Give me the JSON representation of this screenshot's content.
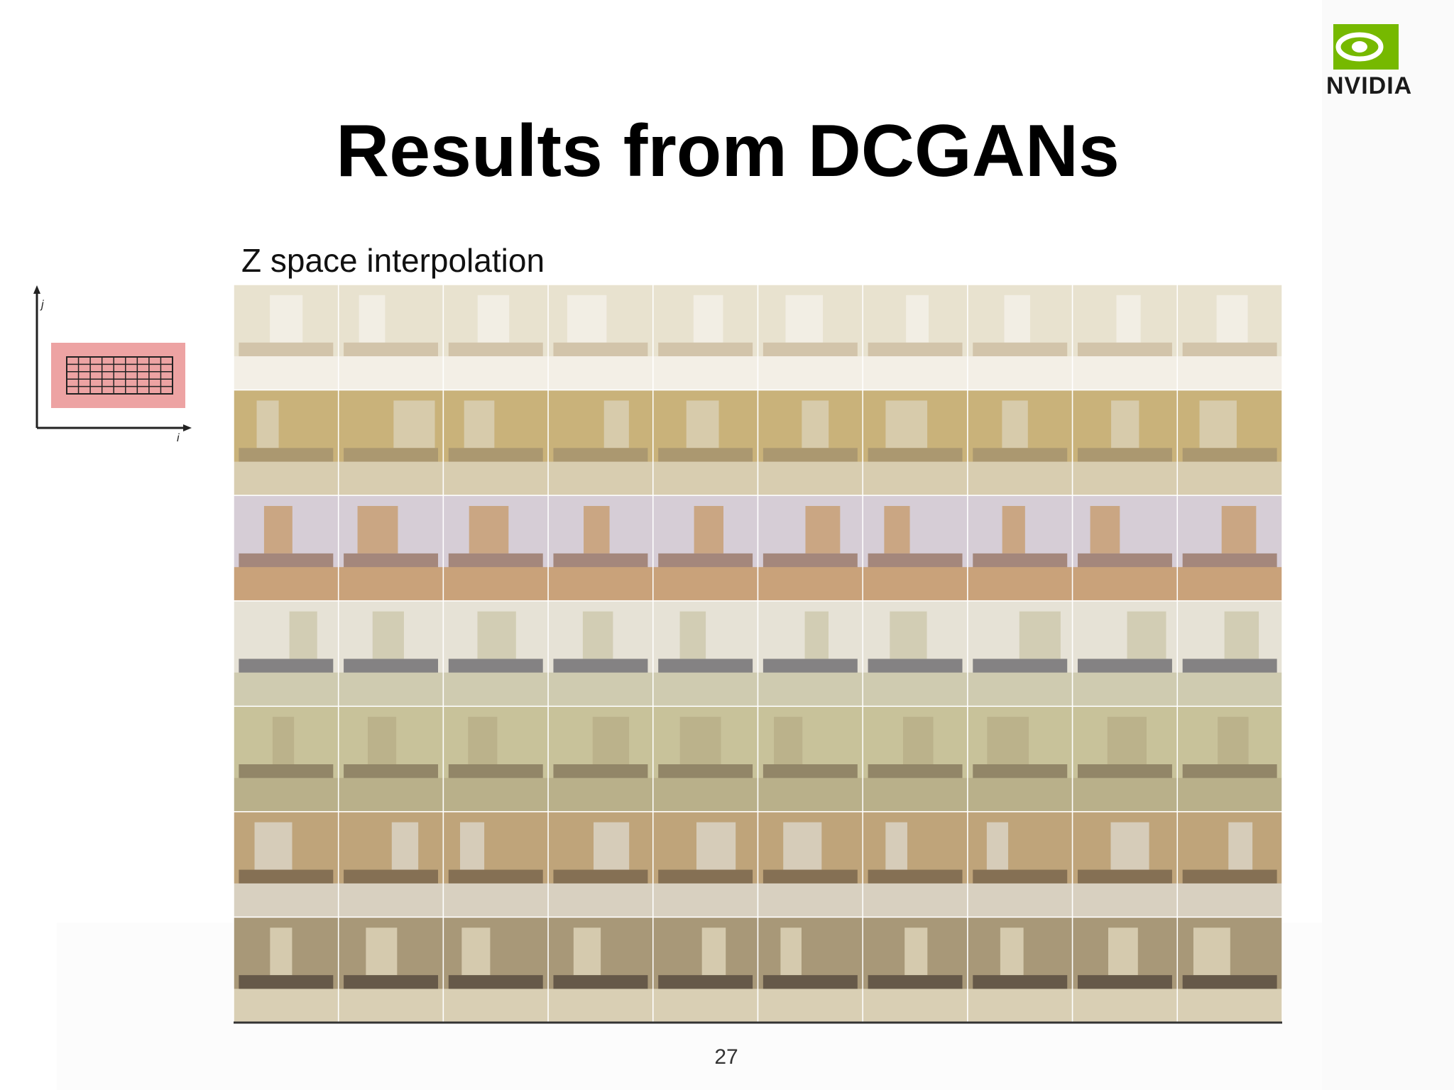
{
  "slide": {
    "title": "Results from DCGANs",
    "subtitle": "Z space interpolation",
    "logo": "NVIDIA",
    "axis_labels": {
      "x": "i",
      "y": "j"
    },
    "page_number": "27"
  }
}
